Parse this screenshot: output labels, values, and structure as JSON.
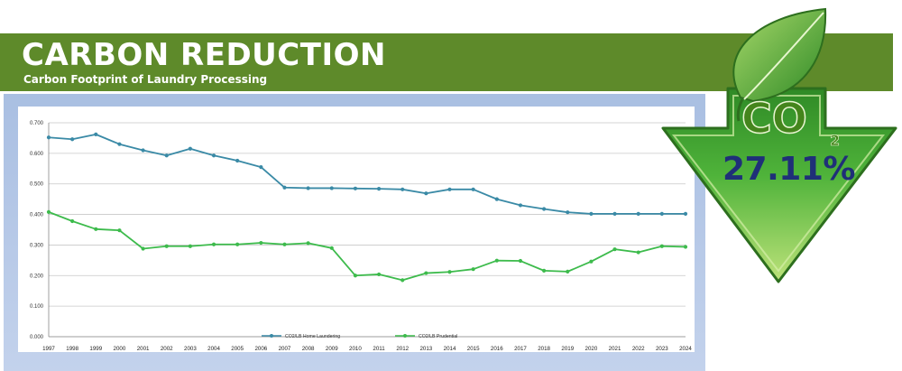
{
  "header": {
    "title": "CARBON REDUCTION",
    "subtitle": "Carbon Footprint of Laundry Processing"
  },
  "badge": {
    "co_label": "CO",
    "subscript": "2",
    "percent": "27.11%",
    "icon": "leaf-co2-down-arrow-icon"
  },
  "colors": {
    "banner": "#5e8a2a",
    "home_series": "#3a8aa6",
    "prudential_series": "#3dbb4c",
    "badge_green": "#3fa12c",
    "percent_text": "#1f2f78"
  },
  "chart_data": {
    "type": "line",
    "x": [
      "1997",
      "1998",
      "1999",
      "2000",
      "2001",
      "2002",
      "2003",
      "2004",
      "2005",
      "2006",
      "2007",
      "2008",
      "2009",
      "2010",
      "2011",
      "2012",
      "2013",
      "2014",
      "2015",
      "2016",
      "2017",
      "2018",
      "2019",
      "2020",
      "2021",
      "2022",
      "2023",
      "2024"
    ],
    "series": [
      {
        "name": "CO2/LB Home Laundering",
        "color": "#3a8aa6",
        "values": [
          0.652,
          0.646,
          0.662,
          0.63,
          0.61,
          0.593,
          0.615,
          0.593,
          0.576,
          0.555,
          0.488,
          0.486,
          0.486,
          0.485,
          0.484,
          0.482,
          0.469,
          0.482,
          0.482,
          0.45,
          0.43,
          0.418,
          0.407,
          0.402,
          0.402,
          0.402,
          0.402,
          0.402
        ]
      },
      {
        "name": "CO2/LB Prudential",
        "color": "#3dbb4c",
        "values": [
          0.408,
          0.378,
          0.352,
          0.348,
          0.288,
          0.296,
          0.296,
          0.302,
          0.302,
          0.307,
          0.302,
          0.306,
          0.29,
          0.2,
          0.204,
          0.185,
          0.208,
          0.212,
          0.221,
          0.249,
          0.248,
          0.216,
          0.213,
          0.246,
          0.286,
          0.276,
          0.296,
          0.294
        ]
      }
    ],
    "yticks": [
      "0.000",
      "0.100",
      "0.200",
      "0.300",
      "0.400",
      "0.500",
      "0.600",
      "0.700"
    ],
    "ylim": [
      0,
      0.7
    ],
    "grid": true,
    "legend": "bottom-center"
  }
}
